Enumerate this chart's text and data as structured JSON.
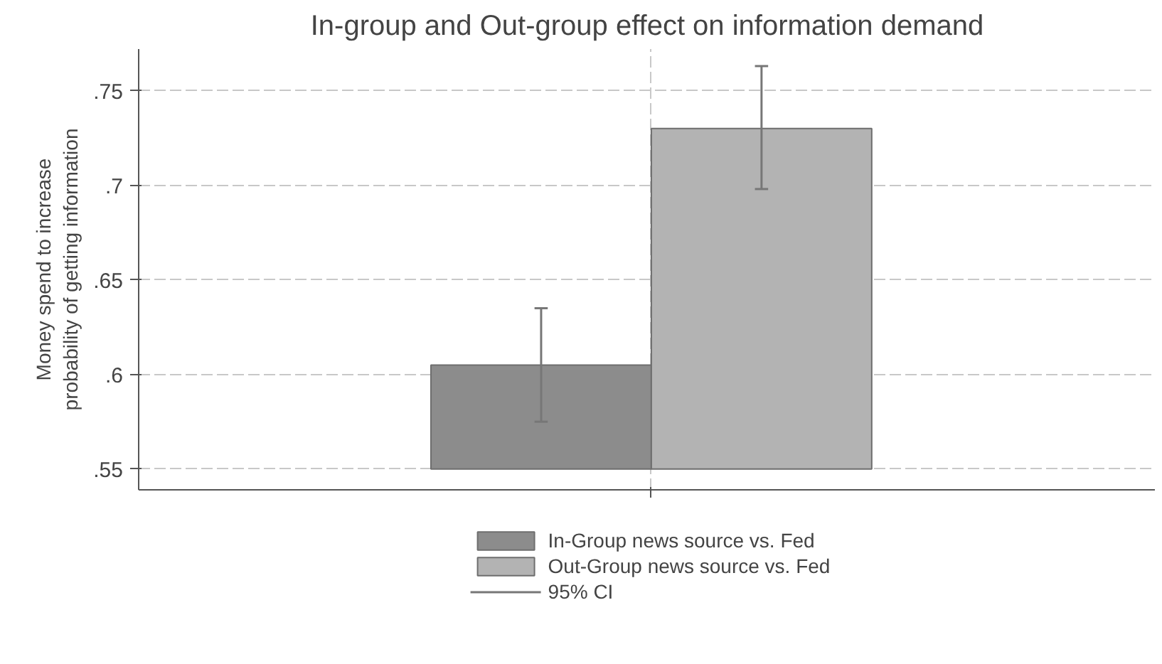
{
  "chart_data": {
    "type": "bar",
    "title": "In-group and Out-group effect on information demand",
    "ylabel": "Money spend to increase\nprobability of getting information",
    "categories": [
      null
    ],
    "series": [
      {
        "name": "In-Group news source vs. Fed",
        "color": "#8c8c8c",
        "base": [
          0.55
        ],
        "values": [
          0.055
        ],
        "errors": [
          [
            0.575,
            0.635
          ]
        ]
      },
      {
        "name": "Out-Group news source vs. Fed",
        "color": "#b3b3b3",
        "base": [
          0.55
        ],
        "values": [
          0.18
        ],
        "errors": [
          [
            0.698,
            0.763
          ]
        ]
      }
    ],
    "annotations": [
      "95% CI"
    ],
    "ylim": [
      0.539,
      0.772
    ],
    "yticks": [
      {
        "value": 0.55,
        "label": ".55"
      },
      {
        "value": 0.6,
        "label": ".6"
      },
      {
        "value": 0.65,
        "label": ".65"
      },
      {
        "value": 0.7,
        "label": ".7"
      },
      {
        "value": 0.75,
        "label": ".75"
      }
    ],
    "grid": true,
    "legend": "bottom"
  }
}
